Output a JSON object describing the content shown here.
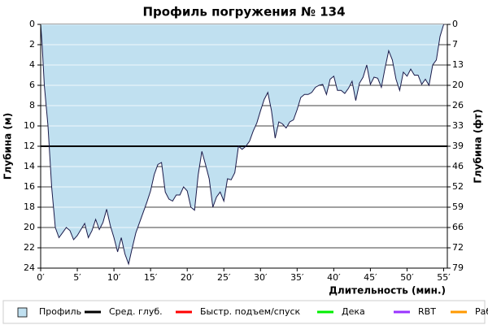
{
  "chart_data": {
    "type": "area",
    "title": "Профиль погружения № 134",
    "y_label": "Глубина (м)",
    "y2_label": "Глубина (фт)",
    "x_label": "Длительность (мин.)",
    "inverted_y": true,
    "xlim": [
      0,
      55.5
    ],
    "xticks": [
      {
        "value": 0,
        "label": "0′"
      },
      {
        "value": 5,
        "label": "5′"
      },
      {
        "value": 10,
        "label": "10′"
      },
      {
        "value": 15,
        "label": "15′"
      },
      {
        "value": 20,
        "label": "20′"
      },
      {
        "value": 25,
        "label": "25′"
      },
      {
        "value": 30,
        "label": "30′"
      },
      {
        "value": 35,
        "label": "35′"
      },
      {
        "value": 40,
        "label": "40′"
      },
      {
        "value": 45,
        "label": "45′"
      },
      {
        "value": 50,
        "label": "50′"
      },
      {
        "value": 55,
        "label": "55′"
      }
    ],
    "ylim": [
      0,
      24
    ],
    "yticks": [
      0,
      2,
      4,
      6,
      8,
      10,
      12,
      14,
      16,
      18,
      20,
      22,
      24
    ],
    "y2lim": [
      0,
      78.74
    ],
    "y2ticks": [
      0,
      {
        "value": 6.56,
        "label": "7"
      },
      {
        "value": 13.12,
        "label": "13"
      },
      {
        "value": 19.69,
        "label": "20"
      },
      {
        "value": 26.25,
        "label": "26"
      },
      {
        "value": 32.81,
        "label": "33"
      },
      {
        "value": 39.37,
        "label": "39"
      },
      {
        "value": 45.93,
        "label": "46"
      },
      {
        "value": 52.49,
        "label": "52"
      },
      {
        "value": 59.06,
        "label": "59"
      },
      {
        "value": 65.62,
        "label": "66"
      },
      {
        "value": 72.18,
        "label": "72"
      },
      {
        "value": 78.74,
        "label": "79"
      }
    ],
    "grid": true,
    "series": [
      {
        "name": "Профиль",
        "color": "#c0e0f0",
        "x": [
          0,
          0.2,
          0.5,
          1,
          1.5,
          2,
          2.5,
          3,
          3.5,
          4,
          4.5,
          5,
          5.5,
          6,
          6.5,
          7,
          7.5,
          8,
          8.5,
          9,
          9.5,
          10,
          10.5,
          11,
          11.5,
          12,
          12.5,
          13,
          13.5,
          14,
          14.5,
          15,
          15.5,
          16,
          16.5,
          17,
          17.5,
          18,
          18.5,
          19,
          19.5,
          20,
          20.5,
          21,
          21.5,
          22,
          22.5,
          23,
          23.5,
          24,
          24.5,
          25,
          25.5,
          26,
          26.5,
          27,
          27.5,
          28,
          28.5,
          29,
          29.5,
          30,
          30.5,
          31,
          31.5,
          32,
          32.5,
          33,
          33.5,
          34,
          34.5,
          35,
          35.5,
          36,
          36.5,
          37,
          37.5,
          38,
          38.5,
          39,
          39.5,
          40,
          40.5,
          41,
          41.5,
          42,
          42.5,
          43,
          43.5,
          44,
          44.5,
          45,
          45.5,
          46,
          46.5,
          47,
          47.5,
          48,
          48.5,
          49,
          49.5,
          50,
          50.5,
          51,
          51.5,
          52,
          52.5,
          53,
          53.5,
          54,
          54.5,
          55
        ],
        "values": [
          0,
          2,
          6,
          10,
          16,
          20,
          21,
          20.5,
          20,
          20.3,
          21.2,
          20.8,
          20.2,
          19.6,
          21,
          20.3,
          19.2,
          20.2,
          19.5,
          18.2,
          19.8,
          21,
          22.4,
          21,
          22.6,
          23.6,
          22,
          20.5,
          19.5,
          18.5,
          17.5,
          16.4,
          14.8,
          13.8,
          13.6,
          16.5,
          17.2,
          17.4,
          16.8,
          16.8,
          16,
          16.4,
          18,
          18.3,
          14.8,
          12.5,
          13.8,
          15.2,
          18,
          17,
          16.5,
          17.4,
          15.2,
          15.3,
          14.6,
          12,
          12.3,
          12,
          11.5,
          10.5,
          9.7,
          8.5,
          7.4,
          6.7,
          8.5,
          11.2,
          9.6,
          9.8,
          10.2,
          9.6,
          9.4,
          8.4,
          7.2,
          6.9,
          6.9,
          6.7,
          6.2,
          6,
          5.9,
          6.9,
          5.4,
          5.1,
          6.5,
          6.5,
          6.8,
          6.3,
          5.6,
          7.5,
          5.8,
          5.2,
          4,
          5.9,
          5.2,
          5.3,
          6.2,
          4.3,
          2.6,
          3.5,
          5.4,
          6.5,
          4.7,
          5.1,
          4.4,
          5,
          5,
          5.9,
          5.4,
          6,
          4,
          3.5,
          1.2,
          0
        ]
      },
      {
        "name": "Сред. глуб.",
        "color": "#000000",
        "values": [
          12
        ]
      },
      {
        "name": "Быстр. подъем/спуск",
        "color": "#ff0000",
        "values": []
      },
      {
        "name": "Дека",
        "color": "#00ee00",
        "values": []
      },
      {
        "name": "RBT",
        "color": "#9933ff",
        "values": []
      },
      {
        "name": "Раб.",
        "color": "#ff9900",
        "values": []
      }
    ]
  }
}
